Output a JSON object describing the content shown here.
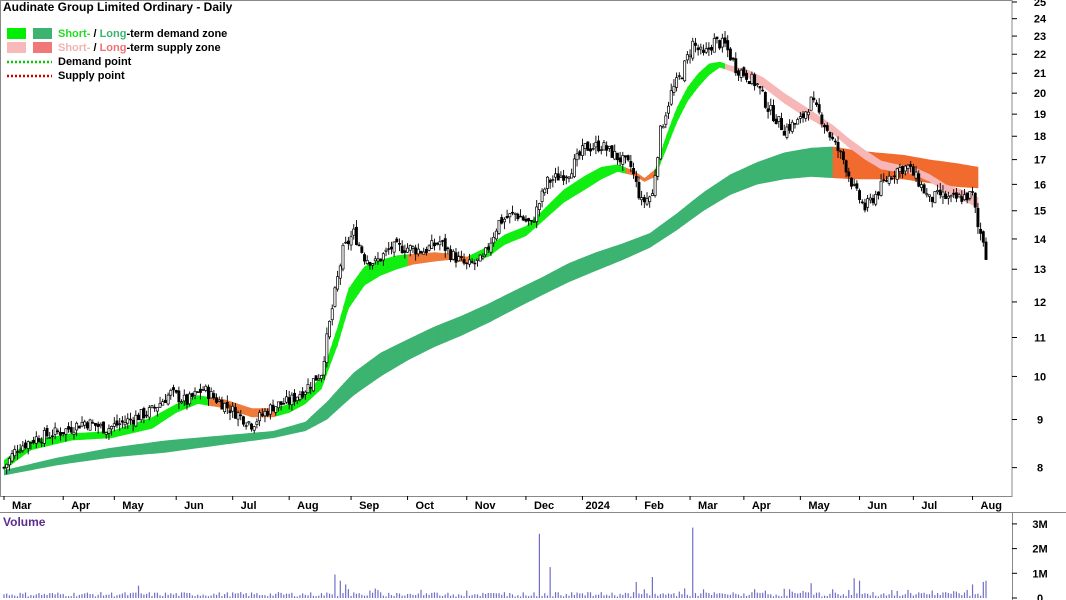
{
  "chart_data": {
    "type": "candlestick",
    "title": "Audinate Group Limited Ordinary - Daily",
    "legend": {
      "placement": "top-left",
      "items": [
        {
          "parts": [
            {
              "text": "Short-",
              "color": "#22dd22"
            },
            {
              "text": " / ",
              "color": "#000000"
            },
            {
              "text": "Long",
              "color": "#3cb371"
            },
            {
              "text": "-term demand zone",
              "color": "#000000"
            }
          ],
          "swatches": [
            "#00ee00",
            "#3cb371"
          ],
          "style": "box"
        },
        {
          "parts": [
            {
              "text": "Short-",
              "color": "#f4b2b2"
            },
            {
              "text": " / ",
              "color": "#000000"
            },
            {
              "text": "Long",
              "color": "#f07070"
            },
            {
              "text": "-term supply zone",
              "color": "#000000"
            }
          ],
          "swatches": [
            "#f7b9b9",
            "#f07878"
          ],
          "style": "box"
        },
        {
          "parts": [
            {
              "text": "Demand point",
              "color": "#000000"
            }
          ],
          "swatches": [
            "#00cc00"
          ],
          "style": "dotted"
        },
        {
          "parts": [
            {
              "text": "Supply point",
              "color": "#000000"
            }
          ],
          "swatches": [
            "#cc0000"
          ],
          "style": "dotted"
        }
      ]
    },
    "price_axis": {
      "scale": "log",
      "range": [
        7.5,
        25
      ],
      "ticks": [
        8,
        9,
        10,
        11,
        12,
        13,
        14,
        15,
        16,
        17,
        18,
        19,
        20,
        21,
        22,
        23,
        24,
        25
      ]
    },
    "months": [
      {
        "label": "Mar",
        "start": 0
      },
      {
        "label": "Apr",
        "start": 22
      },
      {
        "label": "May",
        "start": 41
      },
      {
        "label": "Jun",
        "start": 64
      },
      {
        "label": "Jul",
        "start": 85
      },
      {
        "label": "Aug",
        "start": 106
      },
      {
        "label": "Sep",
        "start": 129
      },
      {
        "label": "Oct",
        "start": 150
      },
      {
        "label": "Nov",
        "start": 172
      },
      {
        "label": "Dec",
        "start": 194
      },
      {
        "label": "2024",
        "start": 215
      },
      {
        "label": "Feb",
        "start": 235
      },
      {
        "label": "Mar",
        "start": 255
      },
      {
        "label": "Apr",
        "start": 275
      },
      {
        "label": "May",
        "start": 296
      },
      {
        "label": "Jun",
        "start": 318
      },
      {
        "label": "Jul",
        "start": 338
      },
      {
        "label": "Aug",
        "start": 360
      }
    ],
    "total_bars": 366,
    "close_keypoints": [
      [
        0,
        8.0
      ],
      [
        5,
        8.4
      ],
      [
        12,
        8.6
      ],
      [
        22,
        8.75
      ],
      [
        30,
        8.95
      ],
      [
        38,
        8.8
      ],
      [
        45,
        8.95
      ],
      [
        55,
        9.2
      ],
      [
        62,
        9.6
      ],
      [
        68,
        9.4
      ],
      [
        74,
        9.7
      ],
      [
        78,
        9.5
      ],
      [
        85,
        9.2
      ],
      [
        92,
        8.9
      ],
      [
        100,
        9.3
      ],
      [
        106,
        9.4
      ],
      [
        112,
        9.7
      ],
      [
        118,
        10.1
      ],
      [
        122,
        11.8
      ],
      [
        126,
        13.6
      ],
      [
        130,
        14.2
      ],
      [
        134,
        13.4
      ],
      [
        138,
        13.2
      ],
      [
        144,
        13.7
      ],
      [
        150,
        13.7
      ],
      [
        156,
        13.6
      ],
      [
        162,
        13.9
      ],
      [
        166,
        13.5
      ],
      [
        172,
        13.1
      ],
      [
        178,
        13.3
      ],
      [
        184,
        14.6
      ],
      [
        190,
        14.9
      ],
      [
        196,
        14.5
      ],
      [
        202,
        16.1
      ],
      [
        210,
        16.5
      ],
      [
        216,
        17.5
      ],
      [
        222,
        17.6
      ],
      [
        228,
        17.1
      ],
      [
        233,
        16.7
      ],
      [
        237,
        15.3
      ],
      [
        241,
        15.6
      ],
      [
        244,
        18.2
      ],
      [
        248,
        20.0
      ],
      [
        252,
        21.0
      ],
      [
        256,
        22.6
      ],
      [
        260,
        21.9
      ],
      [
        264,
        22.7
      ],
      [
        268,
        22.5
      ],
      [
        272,
        21.3
      ],
      [
        276,
        20.9
      ],
      [
        280,
        20.4
      ],
      [
        284,
        19.3
      ],
      [
        290,
        18.3
      ],
      [
        296,
        18.7
      ],
      [
        300,
        19.6
      ],
      [
        304,
        18.8
      ],
      [
        308,
        17.8
      ],
      [
        312,
        17.0
      ],
      [
        316,
        15.8
      ],
      [
        320,
        15.1
      ],
      [
        324,
        15.6
      ],
      [
        328,
        16.2
      ],
      [
        332,
        16.6
      ],
      [
        336,
        16.7
      ],
      [
        340,
        16.1
      ],
      [
        344,
        15.4
      ],
      [
        348,
        15.6
      ],
      [
        352,
        15.4
      ],
      [
        356,
        15.5
      ],
      [
        360,
        15.6
      ],
      [
        362,
        14.4
      ],
      [
        364,
        14.0
      ],
      [
        365,
        13.5
      ]
    ],
    "short_term_zone_keypoints": [
      [
        0,
        7.95,
        8.15
      ],
      [
        10,
        8.35,
        8.55
      ],
      [
        25,
        8.55,
        8.7
      ],
      [
        40,
        8.6,
        8.75
      ],
      [
        55,
        8.8,
        9.05
      ],
      [
        64,
        9.15,
        9.35
      ],
      [
        72,
        9.35,
        9.55
      ],
      [
        82,
        9.25,
        9.45
      ],
      [
        92,
        9.05,
        9.25
      ],
      [
        100,
        9.05,
        9.25
      ],
      [
        106,
        9.15,
        9.35
      ],
      [
        112,
        9.35,
        9.6
      ],
      [
        118,
        9.7,
        10.0
      ],
      [
        124,
        10.8,
        11.3
      ],
      [
        128,
        11.8,
        12.4
      ],
      [
        134,
        12.5,
        13.1
      ],
      [
        140,
        12.8,
        13.3
      ],
      [
        146,
        13.0,
        13.45
      ],
      [
        152,
        13.15,
        13.5
      ],
      [
        160,
        13.25,
        13.55
      ],
      [
        166,
        13.3,
        13.5
      ],
      [
        172,
        13.2,
        13.4
      ],
      [
        180,
        13.4,
        13.75
      ],
      [
        186,
        13.8,
        14.15
      ],
      [
        194,
        14.1,
        14.45
      ],
      [
        200,
        14.6,
        15.0
      ],
      [
        208,
        15.3,
        15.8
      ],
      [
        216,
        15.8,
        16.35
      ],
      [
        222,
        16.2,
        16.7
      ],
      [
        228,
        16.5,
        16.8
      ],
      [
        234,
        16.35,
        16.55
      ],
      [
        238,
        16.1,
        16.25
      ],
      [
        242,
        16.3,
        16.6
      ],
      [
        246,
        17.4,
        18.0
      ],
      [
        250,
        18.6,
        19.3
      ],
      [
        254,
        19.6,
        20.3
      ],
      [
        258,
        20.3,
        21.0
      ],
      [
        262,
        20.9,
        21.5
      ],
      [
        266,
        21.3,
        21.6
      ],
      [
        270,
        21.1,
        21.4
      ],
      [
        276,
        20.8,
        21.2
      ],
      [
        282,
        20.3,
        20.8
      ],
      [
        290,
        19.5,
        20.0
      ],
      [
        296,
        19.0,
        19.5
      ],
      [
        302,
        18.6,
        19.0
      ],
      [
        308,
        18.1,
        18.5
      ],
      [
        314,
        17.5,
        17.9
      ],
      [
        320,
        17.0,
        17.4
      ],
      [
        326,
        16.6,
        16.95
      ],
      [
        332,
        16.5,
        16.8
      ],
      [
        338,
        16.4,
        16.7
      ],
      [
        344,
        16.1,
        16.4
      ],
      [
        350,
        15.7,
        16.0
      ],
      [
        356,
        15.4,
        15.8
      ],
      [
        362,
        15.1,
        15.5
      ]
    ],
    "short_term_supply_ranges": [
      [
        76,
        100
      ],
      [
        150,
        172
      ],
      [
        231,
        241
      ],
      [
        268,
        364
      ]
    ],
    "long_term_zone_keypoints": [
      [
        0,
        7.85,
        7.95
      ],
      [
        20,
        8.05,
        8.2
      ],
      [
        40,
        8.2,
        8.4
      ],
      [
        60,
        8.3,
        8.55
      ],
      [
        80,
        8.45,
        8.65
      ],
      [
        100,
        8.6,
        8.75
      ],
      [
        112,
        8.75,
        8.95
      ],
      [
        120,
        9.0,
        9.4
      ],
      [
        130,
        9.55,
        10.1
      ],
      [
        140,
        10.0,
        10.6
      ],
      [
        150,
        10.4,
        10.95
      ],
      [
        160,
        10.75,
        11.3
      ],
      [
        170,
        11.05,
        11.6
      ],
      [
        180,
        11.4,
        11.95
      ],
      [
        190,
        11.8,
        12.35
      ],
      [
        200,
        12.2,
        12.75
      ],
      [
        210,
        12.6,
        13.2
      ],
      [
        220,
        12.95,
        13.55
      ],
      [
        230,
        13.3,
        13.85
      ],
      [
        240,
        13.7,
        14.2
      ],
      [
        250,
        14.3,
        14.9
      ],
      [
        260,
        15.0,
        15.7
      ],
      [
        270,
        15.6,
        16.4
      ],
      [
        280,
        16.0,
        16.9
      ],
      [
        290,
        16.2,
        17.3
      ],
      [
        300,
        16.3,
        17.5
      ],
      [
        308,
        16.25,
        17.55
      ],
      [
        316,
        16.2,
        17.4
      ],
      [
        324,
        16.2,
        17.3
      ],
      [
        334,
        16.2,
        17.2
      ],
      [
        344,
        16.05,
        17.0
      ],
      [
        354,
        15.9,
        16.85
      ],
      [
        362,
        15.85,
        16.7
      ]
    ],
    "long_term_supply_range": [
      308,
      364
    ],
    "volume_axis": {
      "label": "Volume",
      "ticks": [
        {
          "value": 0,
          "label": "0"
        },
        {
          "value": 1,
          "label": "1M"
        },
        {
          "value": 2,
          "label": "2M"
        },
        {
          "value": 3,
          "label": "3M"
        }
      ],
      "unit": "millions",
      "range": [
        0,
        3.4
      ]
    },
    "volume_spikes": [
      [
        50,
        0.5
      ],
      [
        123,
        0.95
      ],
      [
        125,
        0.7
      ],
      [
        127,
        0.55
      ],
      [
        199,
        2.6
      ],
      [
        203,
        1.25
      ],
      [
        235,
        0.65
      ],
      [
        241,
        0.85
      ],
      [
        256,
        2.85
      ],
      [
        300,
        0.6
      ],
      [
        316,
        0.8
      ],
      [
        318,
        0.7
      ],
      [
        360,
        0.55
      ],
      [
        364,
        0.65
      ],
      [
        365,
        0.7
      ]
    ]
  }
}
